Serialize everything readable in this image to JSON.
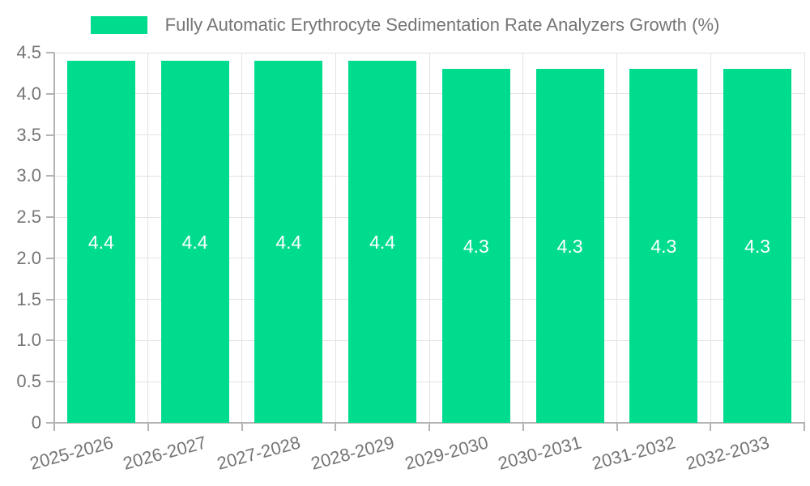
{
  "chart_data": {
    "type": "bar",
    "title": "Fully Automatic Erythrocyte Sedimentation Rate Analyzers Growth (%)",
    "categories": [
      "2025-2026",
      "2026-2027",
      "2027-2028",
      "2028-2029",
      "2029-2030",
      "2030-2031",
      "2031-2032",
      "2032-2033"
    ],
    "values": [
      4.4,
      4.4,
      4.4,
      4.4,
      4.3,
      4.3,
      4.3,
      4.3
    ],
    "value_labels": [
      "4.4",
      "4.4",
      "4.4",
      "4.4",
      "4.3",
      "4.3",
      "4.3",
      "4.3"
    ],
    "xlabel": "",
    "ylabel": "",
    "ylim": [
      0,
      4.5
    ],
    "ytick_step": 0.5,
    "ytick_labels": [
      "0",
      "0.5",
      "1.0",
      "1.5",
      "2.0",
      "2.5",
      "3.0",
      "3.5",
      "4.0",
      "4.5"
    ],
    "grid": true,
    "legend_position": "top-center",
    "colors": {
      "bar": "#00DC8E",
      "value_label": "#FFFFFF",
      "axis_line": "#B3B3B3",
      "grid_line": "#E3E3E3",
      "text": "#757575",
      "background": "#FFFFFF"
    }
  }
}
